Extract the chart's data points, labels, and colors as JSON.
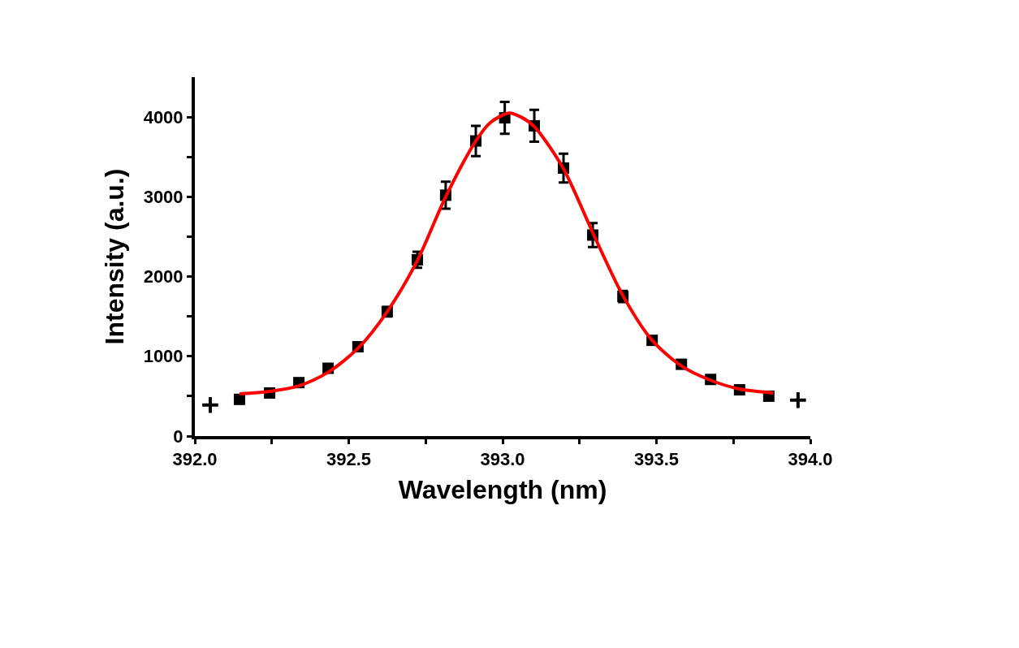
{
  "chart_data": {
    "type": "scatter",
    "xlabel": "Wavelength (nm)",
    "ylabel": "Intensity (a.u.)",
    "xlim": [
      392.0,
      394.0
    ],
    "xticks": [
      {
        "value": 392.0,
        "label": "392.0"
      },
      {
        "value": 392.25,
        "label": null
      },
      {
        "value": 392.5,
        "label": "392.5"
      },
      {
        "value": 392.75,
        "label": null
      },
      {
        "value": 393.0,
        "label": "393.0"
      },
      {
        "value": 393.25,
        "label": null
      },
      {
        "value": 393.5,
        "label": "393.5"
      },
      {
        "value": 393.75,
        "label": null
      },
      {
        "value": 394.0,
        "label": "394.0"
      }
    ],
    "ylim": [
      0,
      4500
    ],
    "yticks": [
      0,
      {
        "value": 500,
        "label": null
      },
      1000,
      {
        "value": 1500,
        "label": null
      },
      2000,
      {
        "value": 2500,
        "label": null
      },
      3000,
      {
        "value": 3500,
        "label": null
      },
      4000
    ],
    "series": [
      {
        "type": "scatter",
        "marker": "square",
        "color": "#000000",
        "x": [
          392.145,
          392.243,
          392.338,
          392.433,
          392.53,
          392.625,
          392.723,
          392.815,
          392.913,
          393.007,
          393.103,
          393.198,
          393.293,
          393.391,
          393.486,
          393.581,
          393.676,
          393.77,
          393.865
        ],
        "values": [
          460,
          540,
          670,
          850,
          1120,
          1560,
          2210,
          3020,
          3700,
          3990,
          3890,
          3360,
          2520,
          1750,
          1200,
          900,
          710,
          580,
          500
        ],
        "errors": [
          null,
          null,
          null,
          null,
          null,
          60,
          100,
          170,
          190,
          200,
          200,
          180,
          150,
          70,
          null,
          null,
          null,
          null,
          null
        ]
      },
      {
        "type": "scatter",
        "marker": "cross",
        "color": "#000000",
        "x": [
          392.05,
          393.96
        ],
        "values": [
          390,
          450
        ]
      },
      {
        "type": "line",
        "color": "#ff0000",
        "x": [
          392.145,
          392.243,
          392.338,
          392.433,
          392.53,
          392.625,
          392.723,
          392.815,
          392.913,
          392.96,
          393.02,
          393.06,
          393.103,
          393.198,
          393.293,
          393.391,
          393.486,
          393.581,
          393.676,
          393.77,
          393.88
        ],
        "values": [
          530,
          560,
          630,
          800,
          1100,
          1560,
          2200,
          3000,
          3700,
          3930,
          4050,
          4000,
          3880,
          3350,
          2550,
          1760,
          1200,
          880,
          700,
          590,
          540
        ]
      }
    ]
  }
}
